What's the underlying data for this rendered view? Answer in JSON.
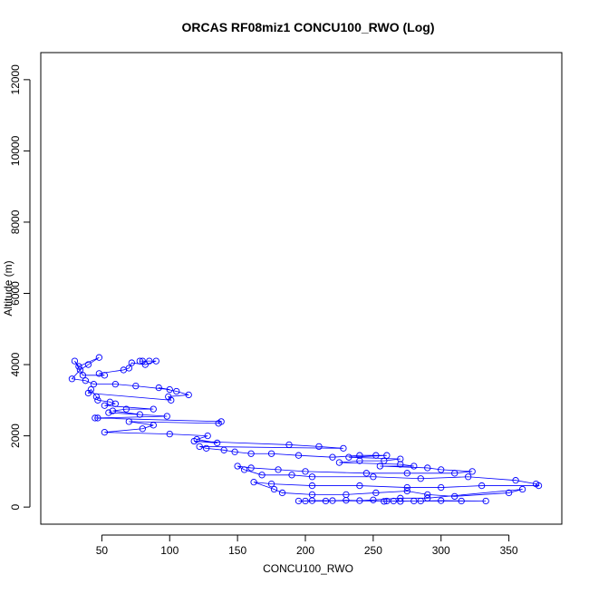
{
  "chart_data": {
    "type": "line",
    "marker": "circle",
    "title": "ORCAS RF08miz1 CONCU100_RWO (Log)",
    "x_label": "CONCU100_RWO",
    "y_label": "Altitude (m)",
    "color": "#0000ff",
    "xlim": [
      5,
      389
    ],
    "ylim": [
      -480,
      12760
    ],
    "xticks": [
      50,
      100,
      150,
      200,
      250,
      300,
      350
    ],
    "yticks": [
      0,
      2000,
      4000,
      6000,
      8000,
      10000,
      12000
    ],
    "x": [
      85,
      80,
      78,
      90,
      82,
      72,
      70,
      66,
      48,
      52,
      36,
      30,
      33,
      48,
      40,
      34,
      28,
      38,
      44,
      60,
      75,
      100,
      92,
      105,
      114,
      99,
      101,
      40,
      42,
      46,
      47,
      56,
      60,
      52,
      88,
      68,
      58,
      78,
      55,
      98,
      47,
      45,
      138,
      136,
      70,
      88,
      80,
      52,
      100,
      128,
      120,
      135,
      118,
      188,
      210,
      228,
      122,
      127,
      140,
      148,
      160,
      175,
      195,
      220,
      240,
      252,
      260,
      232,
      270,
      258,
      240,
      225,
      270,
      280,
      255,
      290,
      300,
      323,
      310,
      275,
      245,
      200,
      180,
      160,
      150,
      155,
      168,
      190,
      205,
      250,
      285,
      320,
      355,
      370,
      372,
      330,
      300,
      275,
      240,
      205,
      175,
      162,
      177,
      183,
      205,
      230,
      252,
      275,
      290,
      310,
      350,
      360,
      290,
      270,
      250,
      240,
      230,
      215,
      200,
      195,
      205,
      220,
      260,
      270,
      280,
      300,
      333,
      315,
      285,
      265,
      258
    ],
    "values": [
      4100,
      4100,
      4100,
      4100,
      4000,
      4050,
      3900,
      3850,
      3750,
      3700,
      3700,
      4100,
      3950,
      4200,
      4000,
      3850,
      3600,
      3550,
      3450,
      3450,
      3400,
      3300,
      3350,
      3250,
      3150,
      3100,
      3000,
      3200,
      3300,
      3100,
      3000,
      2950,
      2900,
      2850,
      2750,
      2750,
      2700,
      2600,
      2650,
      2550,
      2500,
      2500,
      2400,
      2350,
      2400,
      2300,
      2200,
      2100,
      2050,
      2000,
      1900,
      1800,
      1850,
      1750,
      1700,
      1650,
      1700,
      1650,
      1600,
      1550,
      1500,
      1500,
      1450,
      1400,
      1450,
      1450,
      1450,
      1400,
      1350,
      1300,
      1300,
      1250,
      1200,
      1150,
      1150,
      1100,
      1050,
      1000,
      950,
      950,
      950,
      1000,
      1050,
      1100,
      1150,
      1050,
      900,
      900,
      850,
      850,
      800,
      850,
      750,
      650,
      600,
      600,
      550,
      550,
      600,
      600,
      650,
      700,
      500,
      400,
      350,
      350,
      400,
      450,
      350,
      300,
      400,
      500,
      250,
      250,
      200,
      180,
      190,
      170,
      170,
      170,
      180,
      180,
      170,
      160,
      170,
      180,
      170,
      170,
      170,
      170,
      160
    ]
  }
}
